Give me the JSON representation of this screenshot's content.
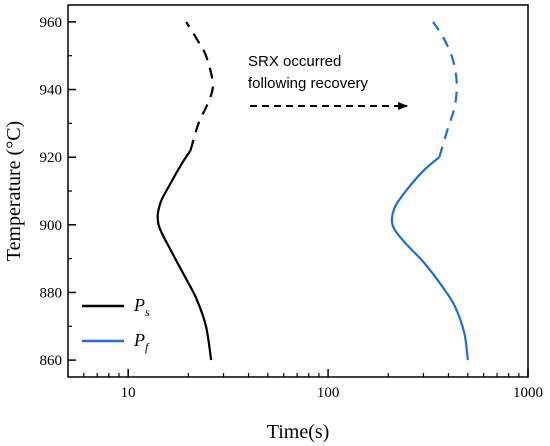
{
  "chart_data": {
    "type": "line",
    "xlabel": "Time(s)",
    "ylabel": "Temperature (°C)",
    "xscale": "log",
    "xlim": [
      5,
      1000
    ],
    "ylim": [
      855,
      965
    ],
    "x_ticks": [
      10,
      100,
      1000
    ],
    "y_ticks": [
      860,
      880,
      900,
      920,
      940,
      960
    ],
    "grid": false,
    "legend_position": "bottom-left",
    "annotation": {
      "line1": "SRX occurred",
      "line2": "following recovery",
      "arrow": "right"
    },
    "series": [
      {
        "name": "Ps",
        "color": "#000000",
        "solid": [
          {
            "x": 26,
            "y": 860
          },
          {
            "x": 24.5,
            "y": 870
          },
          {
            "x": 22,
            "y": 878
          },
          {
            "x": 19.5,
            "y": 884
          },
          {
            "x": 16.5,
            "y": 892
          },
          {
            "x": 14.2,
            "y": 900
          },
          {
            "x": 14.4,
            "y": 906
          },
          {
            "x": 16.2,
            "y": 912
          },
          {
            "x": 18.5,
            "y": 918
          },
          {
            "x": 20.5,
            "y": 922
          }
        ],
        "dashed": [
          {
            "x": 20.5,
            "y": 922
          },
          {
            "x": 22.5,
            "y": 930
          },
          {
            "x": 25.5,
            "y": 937
          },
          {
            "x": 26.5,
            "y": 942
          },
          {
            "x": 24.5,
            "y": 950
          },
          {
            "x": 22,
            "y": 955
          },
          {
            "x": 19.5,
            "y": 960
          }
        ]
      },
      {
        "name": "Pf",
        "color": "#1f6fd0",
        "solid": [
          {
            "x": 500,
            "y": 860
          },
          {
            "x": 480,
            "y": 868
          },
          {
            "x": 430,
            "y": 876
          },
          {
            "x": 370,
            "y": 882
          },
          {
            "x": 300,
            "y": 889
          },
          {
            "x": 240,
            "y": 895
          },
          {
            "x": 210,
            "y": 900
          },
          {
            "x": 215,
            "y": 905
          },
          {
            "x": 245,
            "y": 910
          },
          {
            "x": 300,
            "y": 916
          },
          {
            "x": 360,
            "y": 920
          }
        ],
        "dashed": [
          {
            "x": 360,
            "y": 920
          },
          {
            "x": 395,
            "y": 928
          },
          {
            "x": 430,
            "y": 935
          },
          {
            "x": 440,
            "y": 942
          },
          {
            "x": 420,
            "y": 949
          },
          {
            "x": 380,
            "y": 955
          },
          {
            "x": 335,
            "y": 960
          }
        ]
      }
    ]
  }
}
